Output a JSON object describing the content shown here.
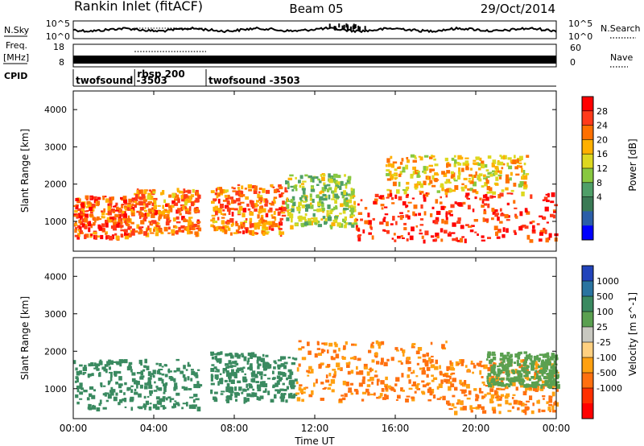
{
  "header": {
    "station": "Rankin Inlet (fitACF)",
    "beam": "Beam 05",
    "date": "29/Oct/2014"
  },
  "nsky_panel": {
    "label": "N.Sky",
    "left_ticks": [
      "10^5",
      "10^0"
    ],
    "right_ticks": [
      "10^5",
      "10^0"
    ],
    "right_label": "N.Search"
  },
  "freq_panel": {
    "label_line1": "Freq.",
    "label_line2": "[MHz]",
    "left_ticks": [
      "18",
      "8"
    ],
    "right_ticks": [
      "60",
      "0"
    ],
    "right_label": "Nave"
  },
  "cpid_panel": {
    "label": "CPID",
    "segments": [
      {
        "label": "twofsound -3503",
        "start": 0.0,
        "end": 3.05
      },
      {
        "label": "rbsp 200",
        "start": 3.05,
        "end": 6.6
      },
      {
        "label": "twofsound -3503",
        "start": 6.6,
        "end": 24.0
      }
    ]
  },
  "power_panel": {
    "ylabel": "Slant Range [km]",
    "yticks": [
      "4000",
      "3000",
      "2000",
      "1000"
    ],
    "colorbar_label": "Power [dB]",
    "colorbar_ticks": [
      "28",
      "24",
      "20",
      "16",
      "12",
      "8",
      "4"
    ],
    "colorbar_colors": [
      "#ff0000",
      "#ff3a1a",
      "#ff7000",
      "#ffb000",
      "#ddd820",
      "#88c840",
      "#4f9f68",
      "#3a7a55",
      "#2b5ea8",
      "#0000ff"
    ]
  },
  "velocity_panel": {
    "ylabel": "Slant Range [km]",
    "yticks": [
      "4000",
      "3000",
      "2000",
      "1000"
    ],
    "colorbar_label": "Velocity [m s^-1]",
    "colorbar_ticks": [
      "1000",
      "500",
      "100",
      "25",
      "-25",
      "-100",
      "-500",
      "-1000"
    ],
    "colorbar_colors": [
      "#2244bb",
      "#2a74a0",
      "#3a8a60",
      "#5aa050",
      "#c8c8c0",
      "#ffd080",
      "#ffa010",
      "#ff7010",
      "#ff3000",
      "#ff0000"
    ]
  },
  "time_axis": {
    "label": "Time UT",
    "ticks": [
      "00:00",
      "04:00",
      "08:00",
      "12:00",
      "16:00",
      "20:00",
      "00:00"
    ]
  },
  "chart_data": {
    "type": "heatmap",
    "x_unit": "hours UT",
    "x_range": [
      0,
      24
    ],
    "y_unit": "km",
    "y_range": [
      200,
      4500
    ],
    "power_regions": [
      {
        "t0": 0.0,
        "t1": 3.0,
        "r0": 600,
        "r1": 1700,
        "value": 26
      },
      {
        "t0": 3.0,
        "t1": 6.2,
        "r0": 700,
        "r1": 1900,
        "value": 24
      },
      {
        "t0": 6.8,
        "t1": 10.5,
        "r0": 700,
        "r1": 2000,
        "value": 24
      },
      {
        "t0": 10.5,
        "t1": 14.0,
        "r0": 900,
        "r1": 2300,
        "value": 16
      },
      {
        "t0": 14.0,
        "t1": 24.0,
        "r0": 500,
        "r1": 1800,
        "value": 28
      },
      {
        "t0": 15.5,
        "t1": 22.5,
        "r0": 1800,
        "r1": 2800,
        "value": 20
      }
    ],
    "velocity_regions": [
      {
        "t0": 0.0,
        "t1": 6.2,
        "r0": 500,
        "r1": 1800,
        "value": 100
      },
      {
        "t0": 6.8,
        "t1": 11.0,
        "r0": 700,
        "r1": 2000,
        "value": 100
      },
      {
        "t0": 11.0,
        "t1": 18.5,
        "r0": 700,
        "r1": 2300,
        "value": -300
      },
      {
        "t0": 18.5,
        "t1": 24.0,
        "r0": 400,
        "r1": 1800,
        "value": -300
      },
      {
        "t0": 20.5,
        "t1": 24.0,
        "r0": 1100,
        "r1": 2000,
        "value": 25
      }
    ]
  }
}
